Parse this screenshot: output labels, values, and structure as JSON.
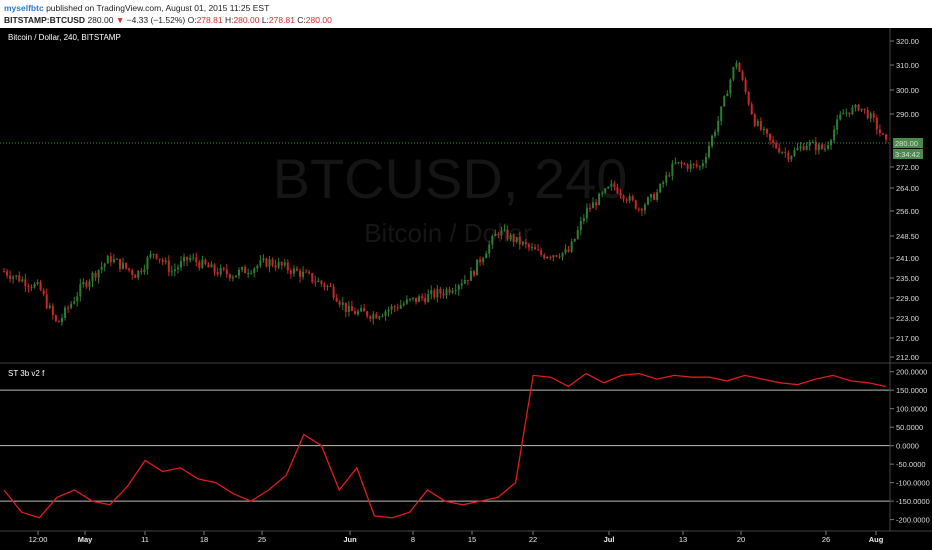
{
  "header": {
    "author": "myselfbtc",
    "published": "published on TradingView.com, August 01, 2015 11:25 EST",
    "symbol": "BITSTAMP:BTCUSD",
    "last": "280.00",
    "change": "−4.33 (−1.52%)",
    "o_label": "O:",
    "o_value": "278.81",
    "h_label": "H:",
    "h_value": "280.00",
    "l_label": "L:",
    "l_value": "278.81",
    "c_label": "C:",
    "c_value": "280.00"
  },
  "main_pane": {
    "title": "Bitcoin / Dollar, 240, BITSTAMP",
    "watermark_symbol": "BTCUSD, 240",
    "watermark_name": "Bitcoin / Dollar",
    "price_ticks": [
      "320.00",
      "310.00",
      "300.00",
      "290.00",
      "272.00",
      "264.00",
      "256.00",
      "248.50",
      "241.00",
      "235.00",
      "229.00",
      "223.00",
      "217.00",
      "212.00"
    ],
    "last_price_badge": "280.00",
    "countdown_badge": "3:34:42"
  },
  "indicator_pane": {
    "title": "ST 3b v2 f",
    "ticks": [
      "200.0000",
      "150.0000",
      "100.0000",
      "50.0000",
      "0.0000",
      "-50.0000",
      "-100.0000",
      "-150.0000",
      "-200.0000"
    ]
  },
  "x_axis": {
    "labels": [
      "12:00",
      "May",
      "11",
      "18",
      "25",
      "Jun",
      "8",
      "15",
      "22",
      "Jul",
      "13",
      "20",
      "26",
      "Aug"
    ],
    "bold": [
      "May",
      "Jun",
      "Jul",
      "Aug"
    ]
  },
  "colors": {
    "up": "#2e7d32",
    "down": "#c62828",
    "indicator": "#e01b1b",
    "badge": "#4a8a4a"
  },
  "chart_data": [
    {
      "type": "candlestick",
      "title": "Bitcoin / Dollar, 240, BITSTAMP",
      "ylim": [
        212,
        320
      ],
      "anchors": [
        {
          "x": 0.0,
          "close": 237
        },
        {
          "x": 0.04,
          "close": 232
        },
        {
          "x": 0.06,
          "close": 221
        },
        {
          "x": 0.09,
          "close": 233
        },
        {
          "x": 0.12,
          "close": 241
        },
        {
          "x": 0.15,
          "close": 236
        },
        {
          "x": 0.17,
          "close": 243
        },
        {
          "x": 0.19,
          "close": 237
        },
        {
          "x": 0.21,
          "close": 241
        },
        {
          "x": 0.24,
          "close": 237
        },
        {
          "x": 0.26,
          "close": 236
        },
        {
          "x": 0.3,
          "close": 240
        },
        {
          "x": 0.34,
          "close": 236
        },
        {
          "x": 0.37,
          "close": 232
        },
        {
          "x": 0.39,
          "close": 225
        },
        {
          "x": 0.42,
          "close": 224
        },
        {
          "x": 0.46,
          "close": 228
        },
        {
          "x": 0.5,
          "close": 231
        },
        {
          "x": 0.53,
          "close": 236
        },
        {
          "x": 0.56,
          "close": 250
        },
        {
          "x": 0.58,
          "close": 247
        },
        {
          "x": 0.61,
          "close": 242
        },
        {
          "x": 0.64,
          "close": 243
        },
        {
          "x": 0.66,
          "close": 256
        },
        {
          "x": 0.69,
          "close": 265
        },
        {
          "x": 0.72,
          "close": 257
        },
        {
          "x": 0.74,
          "close": 262
        },
        {
          "x": 0.76,
          "close": 273
        },
        {
          "x": 0.79,
          "close": 272
        },
        {
          "x": 0.81,
          "close": 288
        },
        {
          "x": 0.83,
          "close": 312
        },
        {
          "x": 0.85,
          "close": 288
        },
        {
          "x": 0.87,
          "close": 280
        },
        {
          "x": 0.89,
          "close": 276
        },
        {
          "x": 0.91,
          "close": 280
        },
        {
          "x": 0.93,
          "close": 278
        },
        {
          "x": 0.95,
          "close": 290
        },
        {
          "x": 0.97,
          "close": 293
        },
        {
          "x": 0.985,
          "close": 288
        },
        {
          "x": 1.0,
          "close": 280
        }
      ]
    },
    {
      "type": "line",
      "title": "ST 3b v2 f",
      "ylim": [
        -220,
        210
      ],
      "levels": [
        150,
        0,
        -150
      ],
      "series": [
        {
          "x": [
            0.0,
            0.02,
            0.04,
            0.06,
            0.08,
            0.1,
            0.12,
            0.14,
            0.16,
            0.18,
            0.2,
            0.22,
            0.24,
            0.26,
            0.28,
            0.3,
            0.32,
            0.34,
            0.36,
            0.38,
            0.4,
            0.42,
            0.44,
            0.46,
            0.48,
            0.5,
            0.52,
            0.54,
            0.56,
            0.58,
            0.6,
            0.62,
            0.64,
            0.66,
            0.68,
            0.7,
            0.72,
            0.74,
            0.76,
            0.78,
            0.8,
            0.82,
            0.84,
            0.86,
            0.88,
            0.9,
            0.92,
            0.94,
            0.96,
            0.98,
            1.0
          ],
          "values": [
            -120,
            -180,
            -195,
            -140,
            -120,
            -150,
            -160,
            -110,
            -40,
            -70,
            -60,
            -90,
            -100,
            -130,
            -150,
            -120,
            -80,
            30,
            0,
            -120,
            -60,
            -190,
            -195,
            -180,
            -120,
            -150,
            -160,
            -150,
            -140,
            -100,
            190,
            185,
            160,
            195,
            170,
            190,
            195,
            180,
            190,
            185,
            185,
            175,
            190,
            180,
            170,
            165,
            180,
            190,
            175,
            170,
            160
          ]
        }
      ]
    }
  ]
}
